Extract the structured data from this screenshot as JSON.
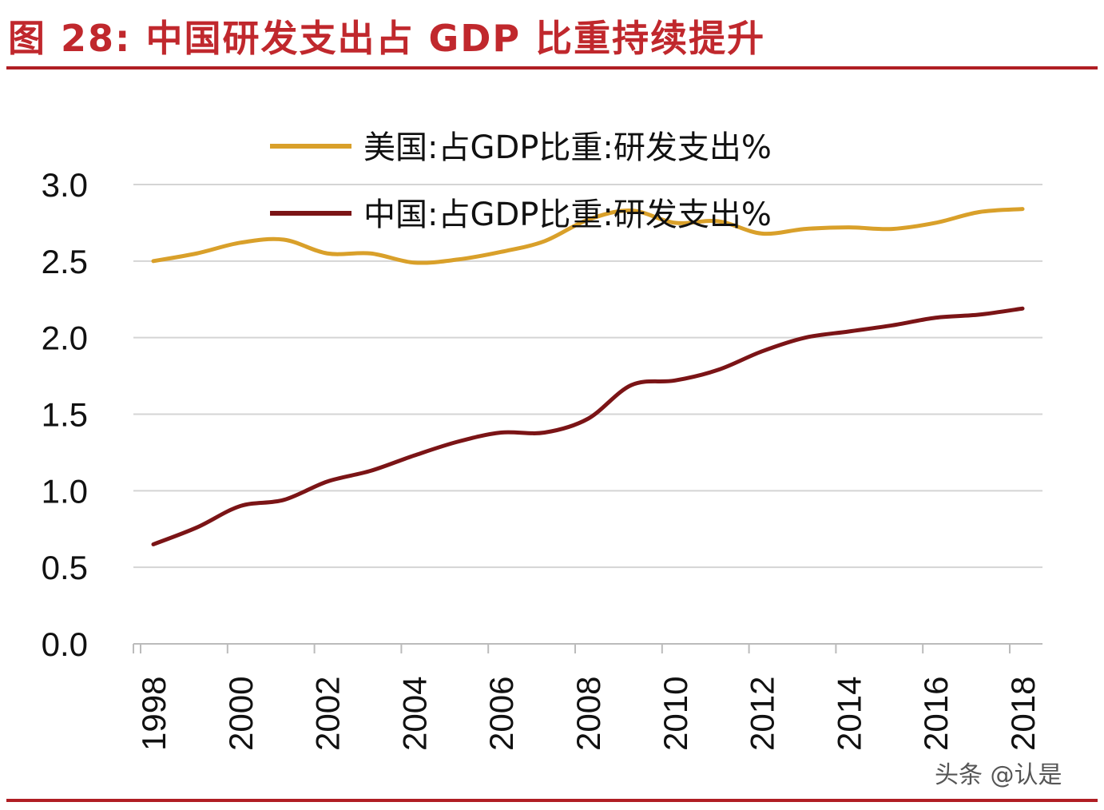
{
  "title": "图 28:  中国研发支出占 GDP 比重持续提升",
  "watermark": "头条 @认是",
  "chart_data": {
    "type": "line",
    "title": "",
    "xlabel": "",
    "ylabel": "",
    "ylim": [
      0,
      3.0
    ],
    "yticks": [
      "0.0",
      "0.5",
      "1.0",
      "1.5",
      "2.0",
      "2.5",
      "3.0"
    ],
    "x": [
      1998,
      1999,
      2000,
      2001,
      2002,
      2003,
      2004,
      2005,
      2006,
      2007,
      2008,
      2009,
      2010,
      2011,
      2012,
      2013,
      2014,
      2015,
      2016,
      2017,
      2018
    ],
    "xticks": [
      "1998",
      "2000",
      "2002",
      "2004",
      "2006",
      "2008",
      "2010",
      "2012",
      "2014",
      "2016",
      "2018"
    ],
    "grid": true,
    "legend": "top-center",
    "series": [
      {
        "name": "美国:占GDP比重:研发支出%",
        "color": "#d9a02a",
        "values": [
          2.5,
          2.55,
          2.62,
          2.64,
          2.55,
          2.55,
          2.49,
          2.51,
          2.56,
          2.63,
          2.77,
          2.83,
          2.75,
          2.76,
          2.68,
          2.71,
          2.72,
          2.71,
          2.75,
          2.82,
          2.84
        ]
      },
      {
        "name": "中国:占GDP比重:研发支出%",
        "color": "#7b1416",
        "values": [
          0.65,
          0.76,
          0.9,
          0.94,
          1.06,
          1.13,
          1.23,
          1.32,
          1.38,
          1.38,
          1.47,
          1.69,
          1.72,
          1.79,
          1.91,
          2.0,
          2.04,
          2.08,
          2.13,
          2.15,
          2.19
        ]
      }
    ]
  }
}
